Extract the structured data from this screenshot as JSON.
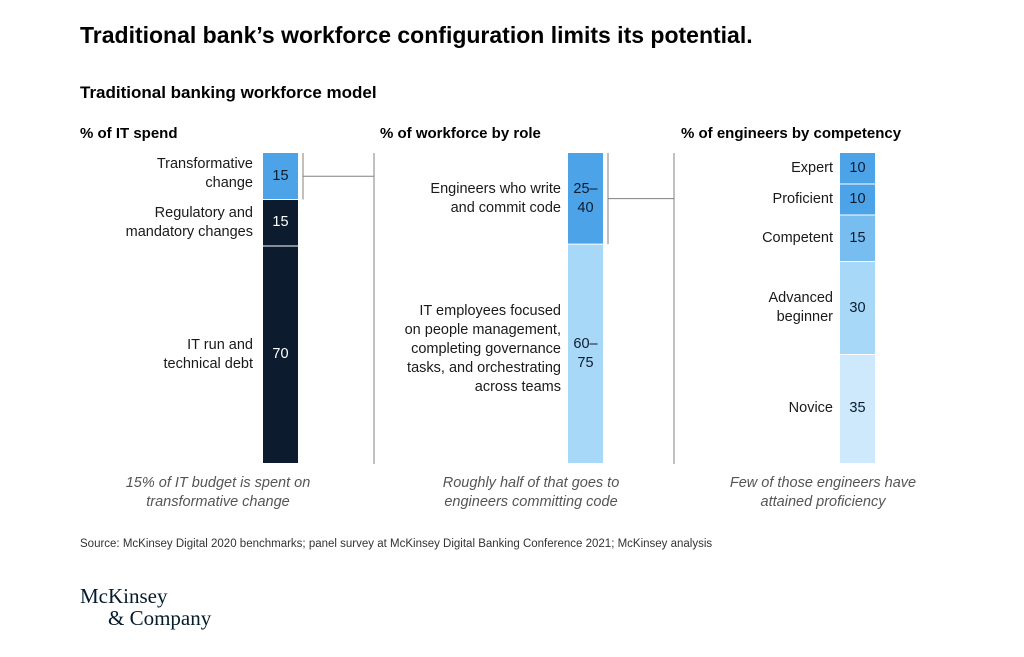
{
  "title": "Traditional bank’s workforce configuration limits its potential.",
  "subtitle": "Traditional banking workforce model",
  "colors": {
    "navy": "#0c1b2e",
    "blue": "#4da3e8",
    "mid_blue": "#78bdf0",
    "light_blue": "#a8d8f8",
    "pale_blue": "#cde9fb",
    "divider": "#808080"
  },
  "chart_data": [
    {
      "type": "bar",
      "title": "% of IT spend",
      "stacked": true,
      "unit": "percent",
      "segments": [
        {
          "label": "Transformative change",
          "value": 15,
          "display": "15",
          "color": "#4da3e8"
        },
        {
          "label": "Regulatory and mandatory changes",
          "value": 15,
          "display": "15",
          "color": "#0c1b2e"
        },
        {
          "label": "IT run and technical debt",
          "value": 70,
          "display": "70",
          "color": "#0c1b2e"
        }
      ],
      "caption": "15% of IT budget is spent on transformative change"
    },
    {
      "type": "bar",
      "title": "% of workforce by role",
      "stacked": true,
      "unit": "percent",
      "segments": [
        {
          "label": "Engineers who write and commit code",
          "value": 25,
          "value_high": 40,
          "display": "25–40",
          "color": "#4da3e8"
        },
        {
          "label": "IT employees focused on people management, completing governance tasks, and orchestrating across teams",
          "value": 60,
          "value_high": 75,
          "display": "60–75",
          "color": "#a8d8f8"
        }
      ],
      "caption": "Roughly half of that goes to engineers committing code"
    },
    {
      "type": "bar",
      "title": "% of engineers by competency",
      "stacked": true,
      "unit": "percent",
      "segments": [
        {
          "label": "Expert",
          "value": 10,
          "display": "10",
          "color": "#4da3e8"
        },
        {
          "label": "Proficient",
          "value": 10,
          "display": "10",
          "color": "#4da3e8"
        },
        {
          "label": "Competent",
          "value": 15,
          "display": "15",
          "color": "#78bdf0"
        },
        {
          "label": "Advanced beginner",
          "value": 30,
          "display": "30",
          "color": "#a8d8f8"
        },
        {
          "label": "Novice",
          "value": 35,
          "display": "35",
          "color": "#cde9fb"
        }
      ],
      "caption": "Few of those engineers have attained proficiency"
    }
  ],
  "source": "Source: McKinsey Digital 2020 benchmarks; panel survey at McKinsey Digital Banking Conference 2021; McKinsey analysis",
  "logo": {
    "line1": "McKinsey",
    "line2": "& Company"
  }
}
